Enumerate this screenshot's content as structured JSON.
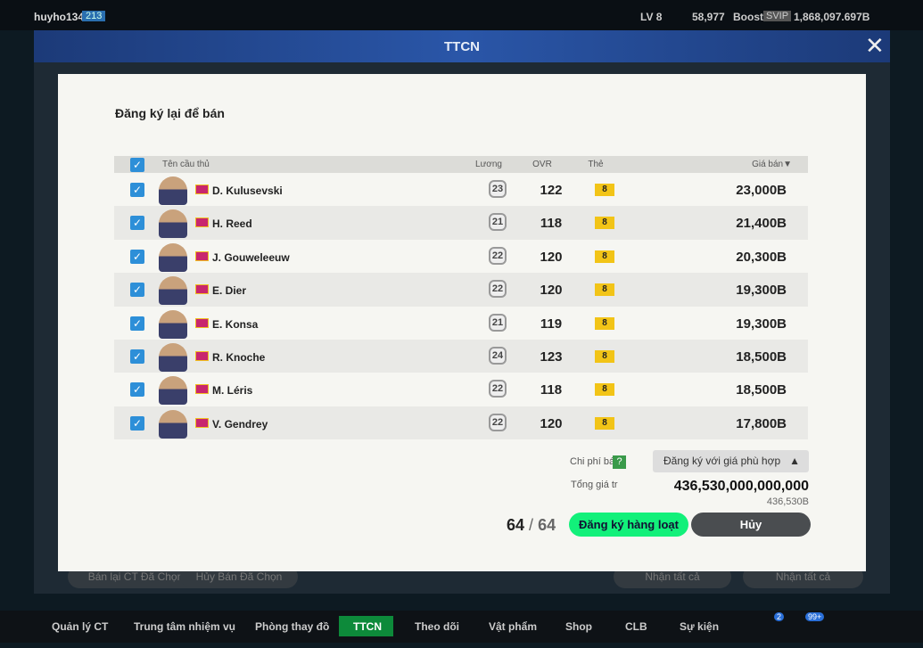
{
  "topbar": {
    "username": "huyho134",
    "user_level": "213",
    "level": "LV 8",
    "points": "58,977",
    "boost": "Boost",
    "vip": "SVIP",
    "balance": "1,868,097.697B"
  },
  "window": {
    "title": "TTCN",
    "buttons": [
      "Bán lại CT Đã Chọn",
      "Hủy Bán Đã Chọn",
      "Nhận tất cả",
      "Nhận tất cả"
    ]
  },
  "dialog": {
    "title": "Đăng ký lại để bán",
    "table": {
      "headers": [
        "Tên cầu thủ",
        "Lương",
        "OVR",
        "Thẻ",
        "Giá bán▼"
      ],
      "rows": [
        [
          "D. Kulusevski",
          "23",
          "122",
          "8",
          "23,000B"
        ],
        [
          "H. Reed",
          "21",
          "118",
          "8",
          "21,400B"
        ],
        [
          "J. Gouweleeuw",
          "22",
          "120",
          "8",
          "20,300B"
        ],
        [
          "E. Dier",
          "22",
          "120",
          "8",
          "19,300B"
        ],
        [
          "E. Konsa",
          "21",
          "119",
          "8",
          "19,300B"
        ],
        [
          "R. Knoche",
          "24",
          "123",
          "8",
          "18,500B"
        ],
        [
          "M. Léris",
          "22",
          "118",
          "8",
          "18,500B"
        ],
        [
          "V. Gendrey",
          "22",
          "120",
          "8",
          "17,800B"
        ]
      ]
    },
    "cost_label": "Chi phí bá",
    "cost_help": "?",
    "dropdown": "Đăng ký với giá phù hợp",
    "total_label": "Tổng giá tr",
    "total": "436,530,000,000,000",
    "total_short": "436,530B",
    "count": {
      "selected": "64",
      "separator": "/",
      "total": "64"
    },
    "confirm": "Đăng ký hàng loạt",
    "cancel": "Hủy"
  },
  "nav": {
    "items": [
      "Quản lý CT",
      "Trung tâm nhiệm vụ",
      "Phòng thay đồ",
      "TTCN",
      "Theo dõi",
      "Vật phẩm",
      "Shop",
      "CLB",
      "Sự kiện"
    ],
    "badges": [
      "2",
      "99+"
    ]
  }
}
